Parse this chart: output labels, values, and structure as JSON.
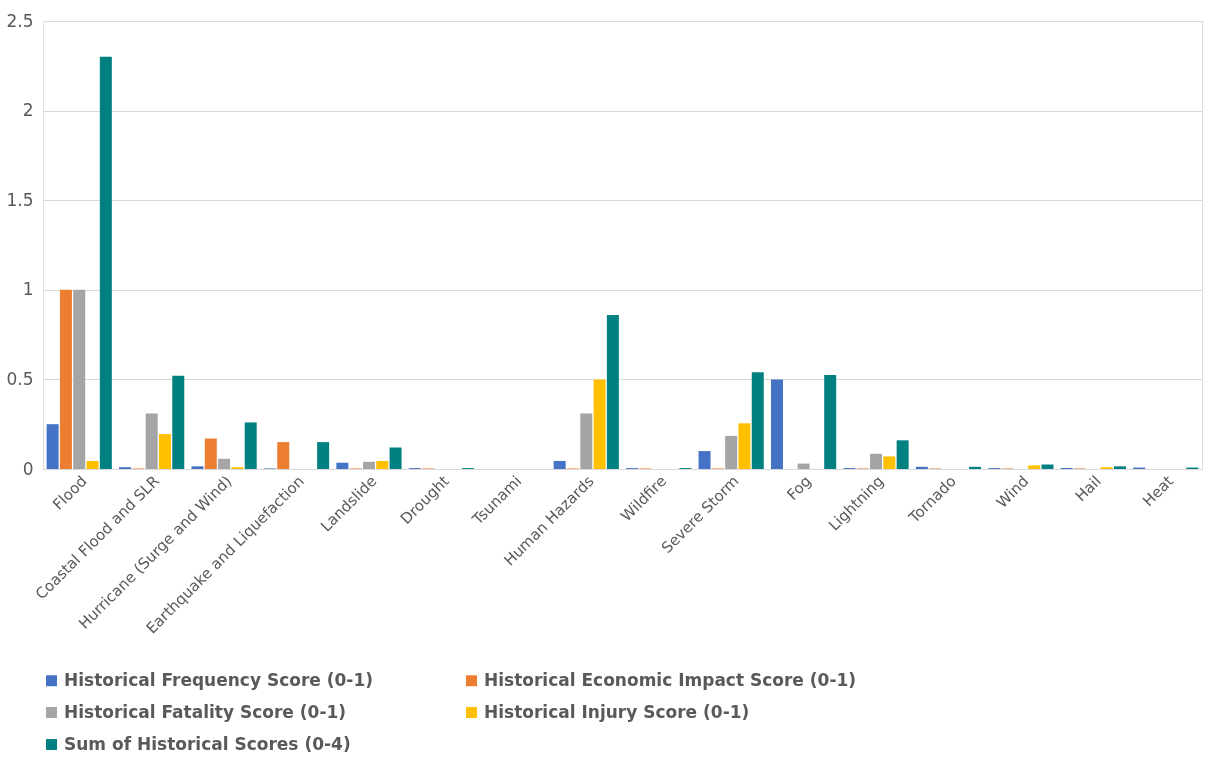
{
  "chart_data": {
    "type": "bar",
    "categories": [
      "Flood",
      "Coastal Flood and SLR",
      "Hurricane (Surge and Wind)",
      "Earthquake and Liquefaction",
      "Landslide",
      "Drought",
      "Tsunami",
      "Human Hazards",
      "Wildfire",
      "Severe Storm",
      "Fog",
      "Lightning",
      "Tornado",
      "Wind",
      "Hail",
      "Heat"
    ],
    "series": [
      {
        "name": "Historical Frequency Score (0-1)",
        "color": "#4472c4",
        "values": [
          0.25,
          0.01,
          0.015,
          0.003,
          0.035,
          0.005,
          0,
          0.045,
          0.005,
          0.1,
          0.5,
          0.005,
          0.012,
          0.005,
          0.005,
          0.008
        ]
      },
      {
        "name": "Historical Economic Impact Score (0-1)",
        "color": "#ed7d31",
        "values": [
          1,
          0.003,
          0.17,
          0.15,
          0.003,
          0.003,
          0,
          0.003,
          0.003,
          0.003,
          0,
          0.003,
          0.003,
          0.003,
          0.003,
          0
        ]
      },
      {
        "name": "Historical Fatality Score (0-1)",
        "color": "#a5a5a5",
        "values": [
          1,
          0.31,
          0.057,
          0,
          0.04,
          0,
          0,
          0.31,
          0,
          0.185,
          0.03,
          0.085,
          0,
          0,
          0,
          0
        ]
      },
      {
        "name": "Historical Injury Score (0-1)",
        "color": "#ffc000",
        "values": [
          0.045,
          0.195,
          0.01,
          0,
          0.045,
          0,
          0,
          0.5,
          0,
          0.255,
          0,
          0.07,
          0,
          0.02,
          0.01,
          0
        ]
      },
      {
        "name": "Sum of Historical Scores (0-4)",
        "color": "#008080",
        "values": [
          2.3,
          0.52,
          0.26,
          0.15,
          0.12,
          0.005,
          0,
          0.86,
          0.005,
          0.54,
          0.525,
          0.16,
          0.012,
          0.025,
          0.015,
          0.008
        ]
      }
    ],
    "ylim": [
      0,
      2.5
    ],
    "yticks": [
      0,
      0.5,
      1,
      1.5,
      2,
      2.5
    ],
    "grid": "y",
    "legend": "bottom"
  }
}
